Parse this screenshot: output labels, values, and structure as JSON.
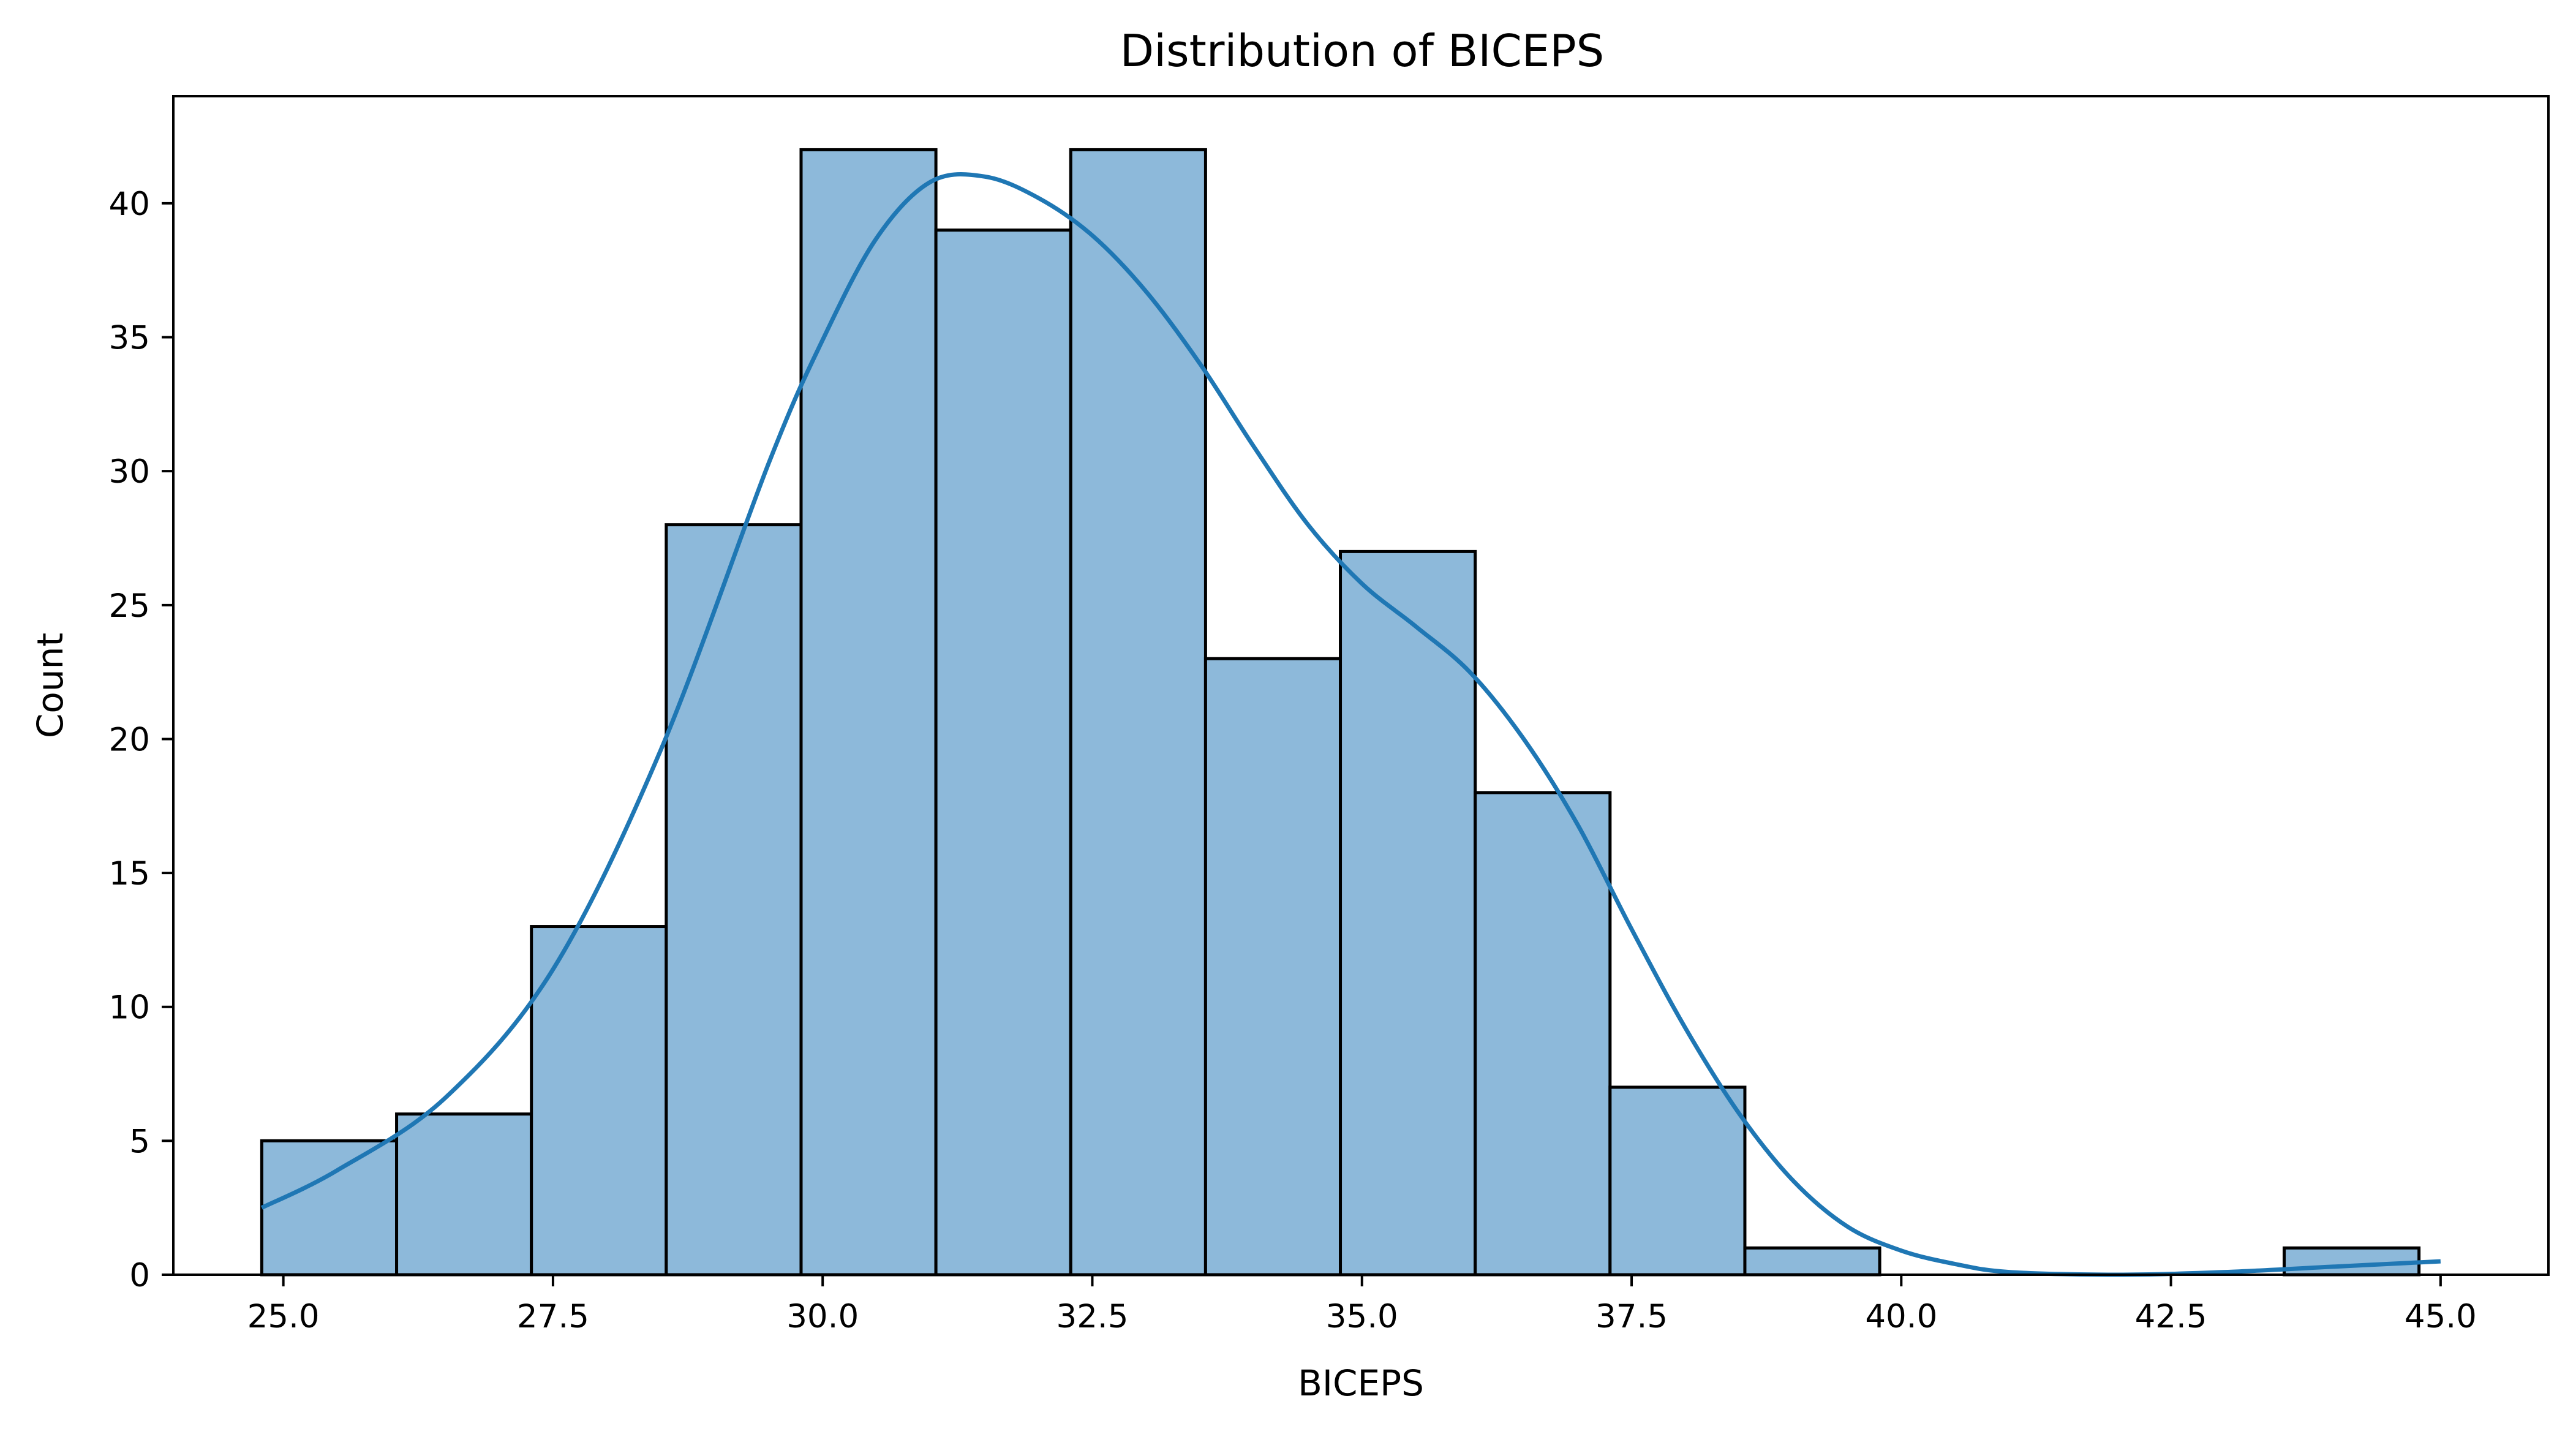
{
  "chart_data": {
    "type": "bar",
    "title": "Distribution of BICEPS",
    "xlabel": "BICEPS",
    "ylabel": "Count",
    "xlim": [
      23.98,
      46.0
    ],
    "ylim": [
      0,
      44
    ],
    "xticks": [
      25.0,
      27.5,
      30.0,
      32.5,
      35.0,
      37.5,
      40.0,
      42.5,
      45.0
    ],
    "xtick_labels": [
      "25.0",
      "27.5",
      "30.0",
      "32.5",
      "35.0",
      "37.5",
      "40.0",
      "42.5",
      "45.0"
    ],
    "yticks": [
      0,
      5,
      10,
      15,
      20,
      25,
      30,
      35,
      40
    ],
    "ytick_labels": [
      "0",
      "5",
      "10",
      "15",
      "20",
      "25",
      "30",
      "35",
      "40"
    ],
    "bin_edges": [
      24.8,
      26.05,
      27.3,
      28.55,
      29.8,
      31.05,
      32.3,
      33.55,
      34.8,
      36.05,
      37.3,
      38.55,
      39.8,
      41.05,
      42.3,
      43.55,
      44.8
    ],
    "counts": [
      5,
      6,
      13,
      28,
      42,
      39,
      42,
      23,
      27,
      18,
      7,
      1,
      0,
      0,
      0,
      1
    ],
    "kde": {
      "x": [
        24.8,
        25.5,
        26.5,
        27.5,
        28.5,
        29.5,
        30.0,
        30.5,
        31.0,
        31.5,
        32.0,
        32.5,
        33.0,
        33.5,
        34.0,
        34.5,
        35.0,
        35.5,
        36.0,
        36.5,
        37.0,
        37.5,
        38.0,
        38.5,
        39.0,
        39.5,
        40.0,
        40.5,
        41.0,
        42.0,
        43.0,
        44.0,
        45.0
      ],
      "y": [
        2.5,
        3.9,
        6.6,
        11.4,
        19.6,
        30.3,
        34.9,
        38.7,
        40.8,
        41.0,
        40.2,
        38.8,
        36.7,
        34.0,
        30.9,
        28.0,
        25.8,
        24.2,
        22.5,
        20.0,
        16.8,
        12.9,
        9.2,
        6.0,
        3.5,
        1.8,
        0.9,
        0.4,
        0.1,
        0.0,
        0.1,
        0.3,
        0.5
      ]
    },
    "bar_fill": "#8db9da",
    "bar_edge": "#000000",
    "kde_color": "#1f77b4",
    "grid": false,
    "legend": "none"
  }
}
